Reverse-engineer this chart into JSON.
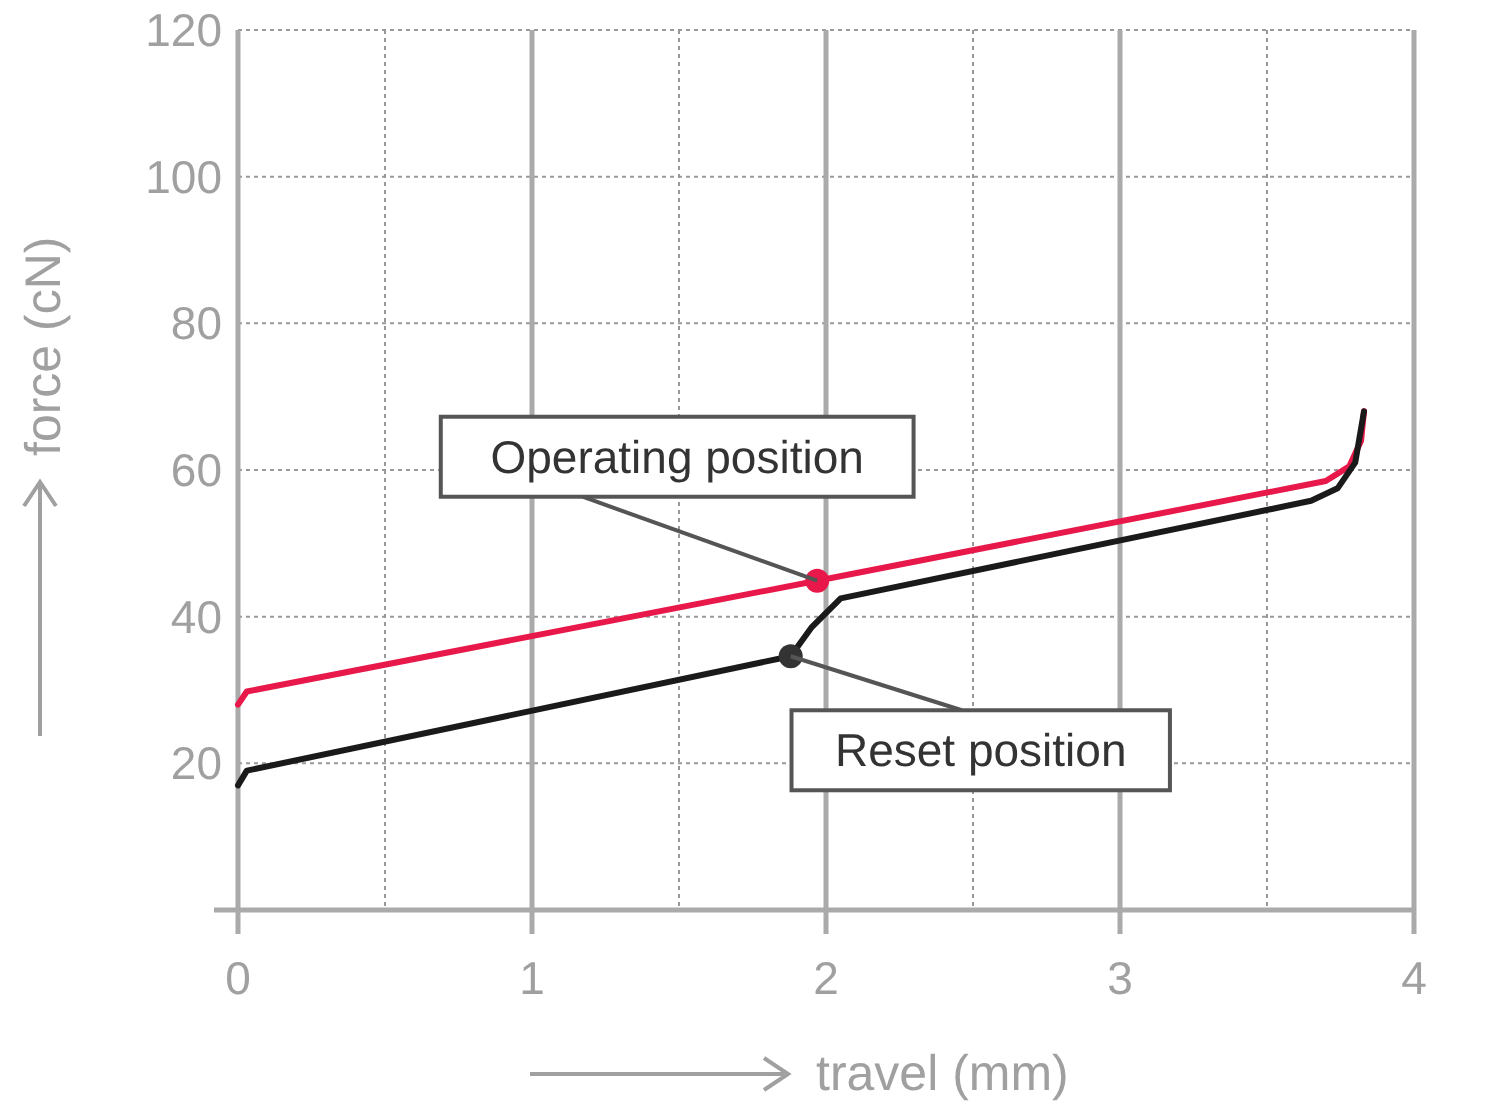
{
  "chart_data": {
    "type": "line",
    "xlabel": "travel (mm)",
    "ylabel": "force (cN)",
    "xlim": [
      0,
      4
    ],
    "ylim": [
      0,
      120
    ],
    "xticks": [
      0,
      {
        "value": 0.5,
        "label": null
      },
      1,
      {
        "value": 1.5,
        "label": null
      },
      2,
      {
        "value": 2.5,
        "label": null
      },
      3,
      {
        "value": 3.5,
        "label": null
      },
      4
    ],
    "yticks": [
      20,
      40,
      60,
      80,
      100,
      120
    ],
    "grid": true,
    "line_style": "solid",
    "marker": "none",
    "series": [
      {
        "color": "#e8194a",
        "x": [
          0,
          0.03,
          1.97,
          3.7,
          3.78,
          3.82,
          3.83
        ],
        "values": [
          28,
          29.8,
          44.9,
          58.5,
          60.5,
          64,
          68
        ]
      },
      {
        "color": "#1a1a1a",
        "x": [
          0,
          0.03,
          1.88,
          1.95,
          2.05,
          3.65,
          3.74,
          3.8,
          3.83
        ],
        "values": [
          17,
          19,
          34.6,
          38.5,
          42.5,
          55.8,
          57.5,
          61,
          68
        ]
      },
      {
        "type": "scatter",
        "marker": "circle",
        "color": "#e8194a",
        "x": [
          1.97
        ],
        "values": [
          44.9
        ]
      },
      {
        "type": "scatter",
        "marker": "circle",
        "color": "#333333",
        "x": [
          1.88
        ],
        "values": [
          34.6
        ]
      }
    ],
    "annotations": [
      {
        "text": "Operating position",
        "x": 1.97,
        "y": 44.9
      },
      {
        "text": "Reset position",
        "x": 1.88,
        "y": 34.6
      }
    ]
  }
}
